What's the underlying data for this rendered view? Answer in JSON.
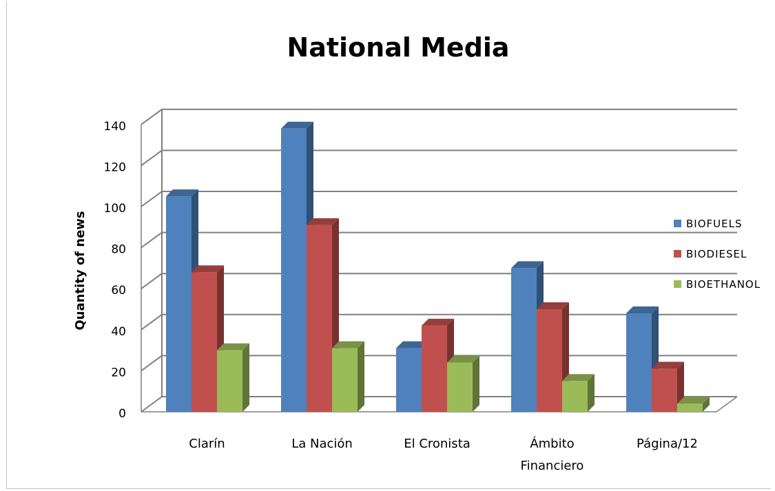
{
  "chart_data": {
    "type": "bar",
    "title": "National Media",
    "xlabel": "",
    "ylabel": "Quantity of news",
    "ylim": [
      0,
      140
    ],
    "yticks": [
      0,
      20,
      40,
      60,
      80,
      100,
      120,
      140
    ],
    "grid": true,
    "legend_position": "right",
    "categories": [
      [
        "Clarín"
      ],
      [
        "La Nación"
      ],
      [
        "El Cronista"
      ],
      [
        "Ámbito",
        "Financiero"
      ],
      [
        "Página/12"
      ]
    ],
    "series": [
      {
        "name": "BIOFUELS",
        "color": "#4F81BD",
        "values": [
          105,
          138,
          31,
          70,
          48
        ]
      },
      {
        "name": "BIODIESEL",
        "color": "#C0504D",
        "values": [
          68,
          91,
          42,
          50,
          21
        ]
      },
      {
        "name": "BIOETHANOL",
        "color": "#9BBB59",
        "values": [
          30,
          31,
          24,
          15,
          4
        ]
      }
    ]
  }
}
